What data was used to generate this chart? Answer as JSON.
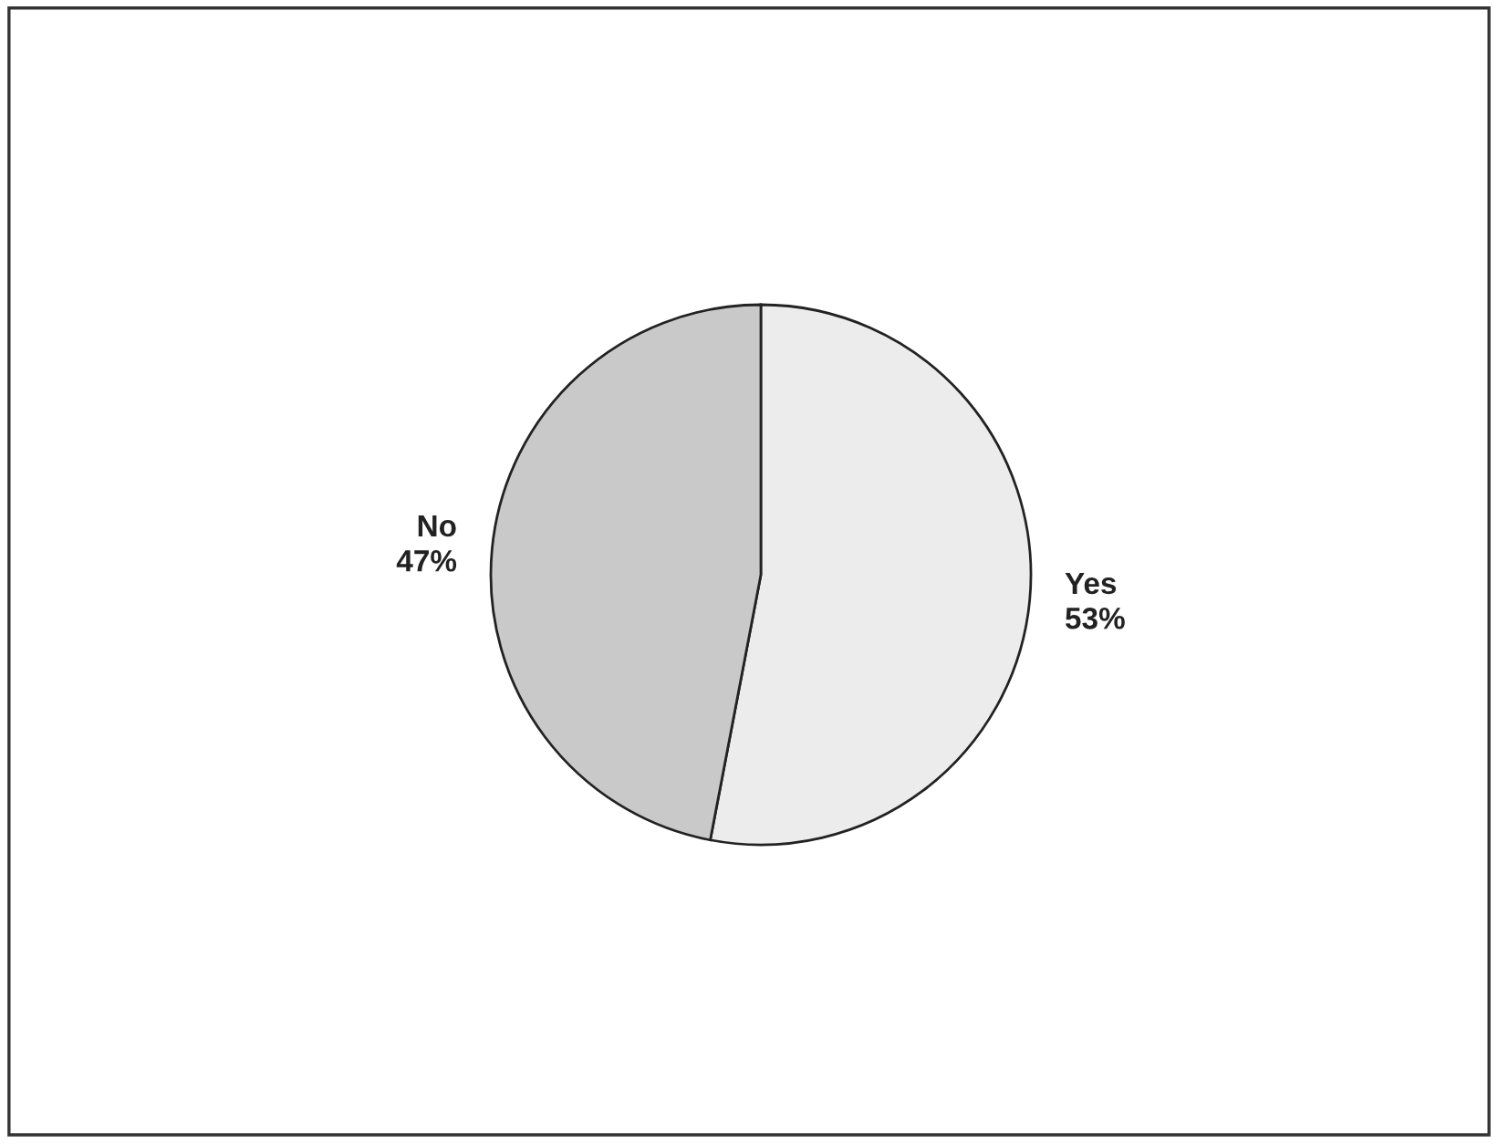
{
  "chart_data": {
    "type": "pie",
    "categories": [
      "Yes",
      "No"
    ],
    "values": [
      53,
      47
    ],
    "colors": [
      "#ececec",
      "#c9c9c9"
    ],
    "value_labels": [
      "53%",
      "47%"
    ]
  }
}
